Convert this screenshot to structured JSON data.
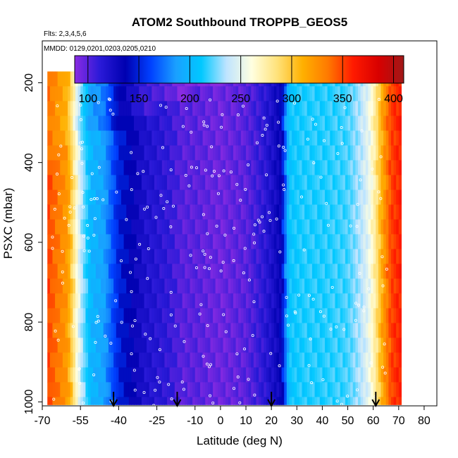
{
  "chart_data": {
    "type": "heatmap",
    "title": "ATOM2 Southbound TROPPB_GEOS5",
    "flights_note": "Flts: 2,3,4,5,6",
    "dates_note": "MMDD: 0129,0201,0203,0205,0210",
    "xlabel": "Latitude (deg N)",
    "ylabel": "PSXC (mbar)",
    "xlim": [
      -70,
      85
    ],
    "ylim": [
      1010,
      95
    ],
    "x_ticks": [
      -70,
      -55,
      -40,
      -25,
      -10,
      0,
      10,
      20,
      30,
      40,
      50,
      60,
      70,
      80
    ],
    "x_tick_labels": [
      "-70",
      "-55",
      "-40",
      "-25",
      "-10",
      "0",
      "10",
      "20",
      "30",
      "40",
      "50",
      "60",
      "70",
      "80"
    ],
    "y_ticks": [
      200,
      400,
      600,
      800,
      1000
    ],
    "y_tick_labels": [
      "200",
      "400",
      "600",
      "800",
      "1000"
    ],
    "colorbar": {
      "range": [
        87,
        410
      ],
      "ticks": [
        100,
        150,
        200,
        250,
        300,
        350,
        400
      ],
      "tick_labels": [
        "100",
        "150",
        "200",
        "250",
        "300",
        "350",
        "400"
      ],
      "colors": [
        "#8a2be2",
        "#2a1ad8",
        "#0000b0",
        "#0040ff",
        "#1aa0ff",
        "#00c8ff",
        "#bfe4ff",
        "#ffffe0",
        "#ffe27a",
        "#ffb000",
        "#ff7a00",
        "#ff1a00",
        "#d80000",
        "#a01818"
      ]
    },
    "latitude_profile": {
      "lat": [
        -68,
        -60,
        -55,
        -51,
        -46,
        -40,
        -30,
        -20,
        -15,
        -10,
        0,
        10,
        16,
        20,
        24,
        27,
        33,
        40,
        50,
        55,
        58,
        61,
        64,
        67,
        71
      ],
      "tropopause_mbar": [
        350,
        320,
        240,
        200,
        190,
        150,
        120,
        110,
        100,
        100,
        95,
        100,
        110,
        120,
        135,
        210,
        215,
        215,
        220,
        235,
        250,
        280,
        320,
        350,
        360
      ]
    },
    "profile_top_mbar": 200,
    "profile_bottom_mbar": 1000,
    "arrows_lat": [
      -42,
      -17,
      20,
      61
    ]
  }
}
